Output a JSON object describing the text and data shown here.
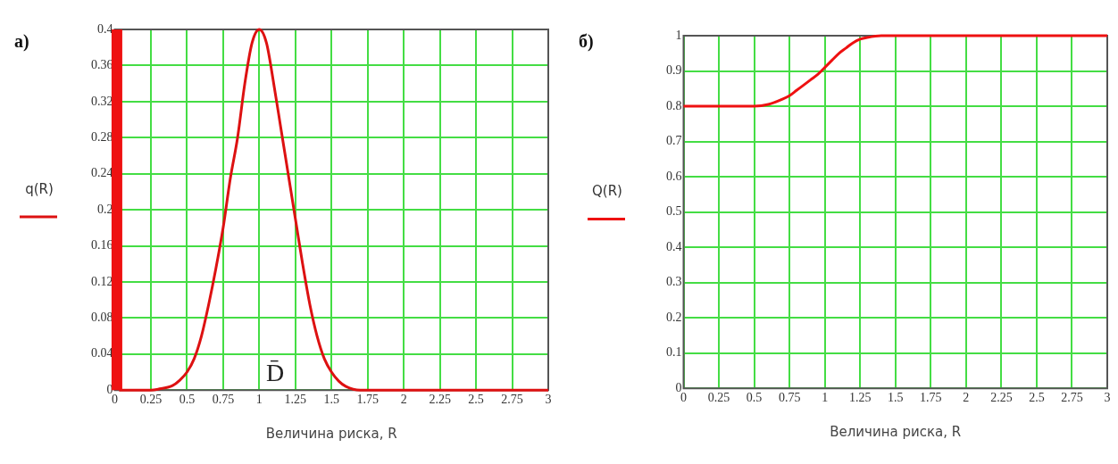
{
  "chart_data": [
    {
      "type": "line",
      "title": "а)",
      "ylabel": "q(R)",
      "xlabel": "Величина риска, R",
      "xlim": [
        0,
        3
      ],
      "xticks": [
        0,
        0.25,
        0.5,
        0.75,
        1,
        1.25,
        1.5,
        1.75,
        2,
        2.25,
        2.5,
        2.75,
        3
      ],
      "ylim": [
        0,
        0.4
      ],
      "yticks": [
        0,
        0.04,
        0.08,
        0.12,
        0.16,
        0.2,
        0.24,
        0.28,
        0.32,
        0.36,
        0.4
      ],
      "grid": true,
      "legend": false,
      "marker": "none",
      "line_style": "solid",
      "annotations": [
        "D̄"
      ],
      "series": [
        {
          "color": "#ee1111",
          "x": [
            0.015,
            0.015
          ],
          "values": [
            0,
            0.4
          ]
        },
        {
          "color": "#dd1111",
          "x": [
            0.03,
            0.25,
            0.3,
            0.4,
            0.45,
            0.5,
            0.55,
            0.6,
            0.65,
            0.7,
            0.75,
            0.8,
            0.85,
            0.9,
            0.95,
            1,
            1.05,
            1.1,
            1.15,
            1.2,
            1.25,
            1.3,
            1.35,
            1.4,
            1.45,
            1.5,
            1.55,
            1.6,
            1.7,
            3
          ],
          "values": [
            0,
            0,
            0.001,
            0.005,
            0.011,
            0.02,
            0.035,
            0.06,
            0.095,
            0.135,
            0.18,
            0.235,
            0.28,
            0.34,
            0.385,
            0.4,
            0.385,
            0.34,
            0.29,
            0.24,
            0.19,
            0.14,
            0.095,
            0.06,
            0.035,
            0.02,
            0.01,
            0.004,
            0,
            0
          ]
        }
      ]
    },
    {
      "type": "line",
      "title": "б)",
      "ylabel": "Q(R)",
      "xlabel": "Величина риска, R",
      "xlim": [
        0,
        3
      ],
      "xticks": [
        0,
        0.25,
        0.5,
        0.75,
        1,
        1.25,
        1.5,
        1.75,
        2,
        2.25,
        2.5,
        2.75,
        3
      ],
      "ylim": [
        0,
        1
      ],
      "yticks": [
        0,
        0.1,
        0.2,
        0.3,
        0.4,
        0.5,
        0.6,
        0.7,
        0.8,
        0.9,
        1
      ],
      "grid": true,
      "legend": false,
      "marker": "none",
      "line_style": "solid",
      "series": [
        {
          "color": "#ee1111",
          "x": [
            0,
            0.5,
            0.6,
            0.7,
            0.75,
            0.8,
            0.85,
            0.9,
            0.95,
            1,
            1.05,
            1.1,
            1.15,
            1.2,
            1.25,
            1.3,
            1.4,
            1.5,
            3
          ],
          "values": [
            0.8,
            0.8,
            0.805,
            0.82,
            0.83,
            0.845,
            0.86,
            0.875,
            0.89,
            0.91,
            0.93,
            0.95,
            0.965,
            0.98,
            0.99,
            0.995,
            1,
            1,
            1
          ]
        }
      ]
    }
  ]
}
